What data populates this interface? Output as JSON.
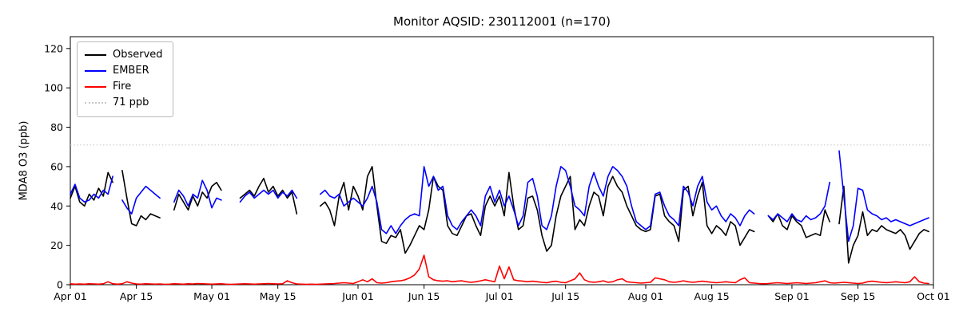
{
  "chart_data": {
    "type": "line",
    "title": "Monitor AQSID: 230112001 (n=170)",
    "ylabel": "MDA8 O3 (ppb)",
    "xlabel": "",
    "legend": [
      "Observed",
      "EMBER",
      "Fire",
      "71 ppb"
    ],
    "legend_position": "upper left",
    "grid": false,
    "ylim": [
      0,
      126
    ],
    "y_ticks": [
      0,
      20,
      40,
      60,
      80,
      100,
      120
    ],
    "x_tick_labels": [
      "Apr 01",
      "Apr 15",
      "May 01",
      "May 15",
      "Jun 01",
      "Jun 15",
      "Jul 01",
      "Jul 15",
      "Aug 01",
      "Aug 15",
      "Sep 01",
      "Sep 15",
      "Oct 01"
    ],
    "x_tick_days": [
      0,
      14,
      30,
      44,
      61,
      75,
      91,
      105,
      122,
      136,
      153,
      167,
      183
    ],
    "x_unit": "days since Apr 01, daily values Apr 01 - Sep 30",
    "threshold": {
      "value": 71,
      "label": "71 ppb",
      "color": "#c9c9c9"
    },
    "series": [
      {
        "name": "Observed",
        "color": "#000000",
        "values": [
          44,
          50,
          42,
          40,
          46,
          43,
          49,
          45,
          57,
          52,
          null,
          58,
          44,
          31,
          30,
          35,
          33,
          36,
          35,
          34,
          null,
          null,
          38,
          46,
          42,
          38,
          45,
          40,
          47,
          44,
          50,
          52,
          48,
          null,
          null,
          null,
          44,
          46,
          48,
          45,
          50,
          54,
          47,
          50,
          45,
          48,
          44,
          47,
          36,
          null,
          null,
          null,
          null,
          40,
          42,
          38,
          30,
          45,
          52,
          38,
          50,
          45,
          38,
          55,
          60,
          40,
          22,
          21,
          25,
          24,
          28,
          16,
          20,
          25,
          30,
          28,
          38,
          55,
          50,
          48,
          30,
          26,
          25,
          30,
          35,
          36,
          30,
          25,
          40,
          45,
          40,
          45,
          35,
          57,
          40,
          28,
          30,
          44,
          45,
          38,
          25,
          17,
          20,
          35,
          45,
          50,
          55,
          28,
          33,
          30,
          40,
          47,
          45,
          35,
          50,
          55,
          50,
          47,
          40,
          35,
          30,
          28,
          27,
          28,
          45,
          46,
          35,
          32,
          30,
          22,
          48,
          50,
          35,
          45,
          52,
          30,
          26,
          30,
          28,
          25,
          32,
          30,
          20,
          24,
          28,
          27,
          null,
          null,
          35,
          32,
          36,
          30,
          28,
          35,
          32,
          30,
          24,
          25,
          26,
          25,
          38,
          32,
          null,
          31,
          50,
          11,
          20,
          25,
          37,
          25,
          28,
          27,
          30,
          28,
          27,
          26,
          28,
          25,
          18,
          22,
          26,
          28,
          27
        ]
      },
      {
        "name": "EMBER",
        "color": "#0000ff",
        "values": [
          46,
          51,
          44,
          42,
          43,
          46,
          44,
          48,
          46,
          55,
          null,
          43,
          39,
          36,
          44,
          47,
          50,
          48,
          46,
          44,
          null,
          null,
          42,
          48,
          45,
          40,
          46,
          44,
          53,
          48,
          39,
          44,
          43,
          null,
          null,
          null,
          42,
          45,
          47,
          44,
          46,
          48,
          46,
          48,
          44,
          47,
          45,
          48,
          44,
          null,
          null,
          null,
          null,
          46,
          48,
          45,
          44,
          46,
          40,
          42,
          44,
          42,
          40,
          44,
          50,
          42,
          28,
          26,
          30,
          26,
          30,
          33,
          35,
          36,
          35,
          60,
          50,
          55,
          48,
          50,
          35,
          30,
          28,
          32,
          35,
          38,
          35,
          30,
          45,
          50,
          42,
          48,
          40,
          45,
          38,
          30,
          35,
          52,
          54,
          45,
          30,
          28,
          35,
          50,
          60,
          58,
          50,
          40,
          38,
          35,
          50,
          57,
          50,
          45,
          55,
          60,
          58,
          55,
          50,
          40,
          32,
          30,
          28,
          30,
          46,
          47,
          40,
          35,
          33,
          30,
          50,
          47,
          40,
          50,
          55,
          42,
          38,
          40,
          35,
          32,
          36,
          34,
          30,
          35,
          38,
          36,
          null,
          null,
          35,
          33,
          36,
          34,
          32,
          36,
          33,
          32,
          35,
          33,
          34,
          36,
          40,
          52,
          null,
          68,
          45,
          22,
          30,
          49,
          48,
          38,
          36,
          35,
          33,
          34,
          32,
          33,
          32,
          31,
          30,
          31,
          32,
          33,
          34
        ]
      },
      {
        "name": "Fire",
        "color": "#ff0000",
        "values": [
          0.5,
          0.3,
          0.4,
          0.3,
          0.5,
          0.4,
          0.3,
          0.5,
          1.5,
          0.5,
          0.3,
          0.5,
          1.5,
          0.8,
          0.4,
          0.3,
          0.5,
          0.4,
          0.3,
          0.4,
          0.2,
          0.3,
          0.5,
          0.4,
          0.3,
          0.5,
          0.4,
          0.6,
          0.5,
          0.4,
          0.3,
          0.4,
          0.5,
          0.3,
          0.2,
          0.3,
          0.4,
          0.5,
          0.4,
          0.3,
          0.4,
          0.5,
          0.6,
          0.5,
          0.4,
          0.5,
          2.0,
          1.0,
          0.4,
          0.3,
          0.2,
          0.3,
          0.2,
          0.3,
          0.4,
          0.5,
          0.6,
          0.8,
          1.0,
          0.8,
          0.6,
          1.5,
          2.5,
          1.5,
          3.0,
          1.0,
          0.8,
          1.0,
          1.5,
          1.8,
          2.0,
          2.5,
          3.5,
          5.0,
          8.0,
          15.0,
          4.0,
          2.5,
          2.0,
          1.8,
          2.0,
          1.5,
          1.8,
          2.0,
          1.5,
          1.2,
          1.5,
          2.0,
          2.5,
          2.0,
          1.5,
          9.5,
          3.0,
          9.0,
          2.5,
          2.0,
          1.8,
          1.5,
          1.8,
          1.5,
          1.2,
          1.0,
          1.5,
          1.8,
          1.2,
          1.0,
          2.0,
          3.0,
          6.0,
          2.5,
          1.5,
          1.2,
          1.5,
          2.0,
          1.2,
          1.5,
          2.5,
          3.0,
          1.5,
          1.2,
          1.0,
          0.8,
          1.0,
          1.2,
          3.5,
          3.0,
          2.5,
          1.5,
          1.2,
          1.5,
          2.0,
          1.5,
          1.2,
          1.5,
          1.8,
          1.5,
          1.2,
          1.0,
          1.2,
          1.5,
          1.2,
          1.0,
          2.5,
          3.5,
          1.0,
          0.8,
          0.6,
          0.5,
          0.6,
          0.8,
          1.0,
          0.8,
          0.6,
          0.8,
          1.0,
          0.8,
          0.6,
          0.8,
          1.0,
          1.5,
          2.0,
          1.0,
          0.8,
          1.0,
          1.2,
          1.0,
          0.8,
          0.6,
          0.8,
          1.5,
          1.8,
          1.5,
          1.2,
          1.0,
          1.2,
          1.5,
          1.2,
          1.0,
          1.5,
          4.0,
          1.5,
          0.8,
          0.6
        ]
      }
    ]
  }
}
